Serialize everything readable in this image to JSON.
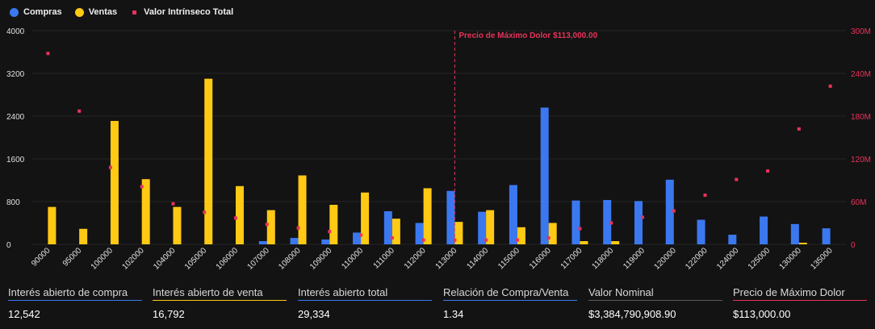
{
  "legend": [
    {
      "label": "Compras",
      "color": "#3b78f0",
      "shape": "circle"
    },
    {
      "label": "Ventas",
      "color": "#ffc914",
      "shape": "circle"
    },
    {
      "label": "Valor Intrínseco Total",
      "color": "#e8335a",
      "shape": "square"
    }
  ],
  "chart_data": {
    "type": "bar",
    "categories": [
      "90000",
      "95000",
      "100000",
      "102000",
      "104000",
      "105000",
      "106000",
      "107000",
      "108000",
      "109000",
      "110000",
      "111000",
      "112000",
      "113000",
      "114000",
      "115000",
      "116000",
      "117000",
      "118000",
      "119000",
      "120000",
      "122000",
      "124000",
      "125000",
      "130000",
      "135000"
    ],
    "series": [
      {
        "name": "Compras",
        "color": "#3b78f0",
        "axis": "left",
        "values": [
          0,
          0,
          0,
          0,
          0,
          0,
          0,
          60,
          120,
          90,
          220,
          620,
          400,
          1000,
          610,
          1110,
          2560,
          820,
          830,
          810,
          1210,
          460,
          180,
          520,
          380,
          300
        ]
      },
      {
        "name": "Ventas",
        "color": "#ffc914",
        "axis": "left",
        "values": [
          700,
          290,
          2310,
          1220,
          700,
          3100,
          1090,
          640,
          1290,
          740,
          970,
          480,
          1050,
          420,
          640,
          320,
          400,
          60,
          60,
          0,
          0,
          0,
          0,
          0,
          30,
          0
        ]
      },
      {
        "name": "Valor Intrínseco Total",
        "color": "#e8335a",
        "axis": "right",
        "type": "scatter",
        "values": [
          268,
          187,
          108,
          81,
          57,
          45,
          37,
          28,
          23,
          18,
          13,
          9,
          6,
          6,
          6,
          6,
          9,
          22,
          30,
          38,
          47,
          69,
          91,
          103,
          162,
          222
        ]
      }
    ],
    "y_left": {
      "min": 0,
      "max": 4000,
      "ticks": [
        "0",
        "800",
        "1600",
        "2400",
        "3200",
        "4000"
      ],
      "tick_values": [
        0,
        800,
        1600,
        2400,
        3200,
        4000
      ]
    },
    "y_right": {
      "min": 0,
      "max": 300,
      "ticks": [
        "0",
        "60M",
        "120M",
        "180M",
        "240M",
        "300M"
      ],
      "tick_values": [
        0,
        60,
        120,
        180,
        240,
        300
      ],
      "color": "#e8335a"
    },
    "max_pain": {
      "category": "113000",
      "label": "Precio de Máximo Dolor $113,000.00",
      "color": "#e8335a"
    },
    "grid": true
  },
  "stats": [
    {
      "label": "Interés abierto de compra",
      "value": "12,542",
      "color": "#3b78f0"
    },
    {
      "label": "Interés abierto de venta",
      "value": "16,792",
      "color": "#ffc914"
    },
    {
      "label": "Interés abierto total",
      "value": "29,334",
      "color": "#3b78f0"
    },
    {
      "label": "Relación de Compra/Venta",
      "value": "1.34",
      "color": "#3b78f0"
    },
    {
      "label": "Valor Nominal",
      "value": "$3,384,790,908.90",
      "color": "#5a5a5a"
    },
    {
      "label": "Precio de Máximo Dolor",
      "value": "$113,000.00",
      "color": "#e8335a"
    }
  ]
}
